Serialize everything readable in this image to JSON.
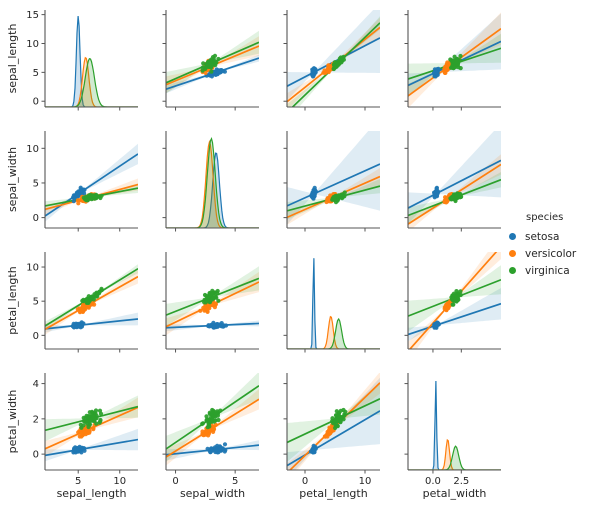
{
  "style": {
    "background": "#ffffff",
    "spine_color": "#555555",
    "text_color": "#262626"
  },
  "legend": {
    "title": "species",
    "items": [
      {
        "label": "setosa",
        "color": "#1f77b4"
      },
      {
        "label": "versicolor",
        "color": "#ff7f0e"
      },
      {
        "label": "virginica",
        "color": "#2ca02c"
      }
    ]
  },
  "chart_data": {
    "type": "scatter",
    "subtype": "pairplot-regression-kde",
    "dataset": "iris",
    "variables": [
      "sepal_length",
      "sepal_width",
      "petal_length",
      "petal_width"
    ],
    "axes": {
      "x": [
        {
          "range": [
            1.0,
            12.2
          ],
          "ticks": [
            {
              "v": 5,
              "label": "5"
            },
            {
              "v": 10,
              "label": "10"
            }
          ]
        },
        {
          "range": [
            -0.8,
            7.0
          ],
          "ticks": [
            {
              "v": 0,
              "label": "0"
            },
            {
              "v": 5,
              "label": "5"
            }
          ]
        },
        {
          "range": [
            -3.0,
            12.5
          ],
          "ticks": [
            {
              "v": 0,
              "label": "0"
            },
            {
              "v": 10,
              "label": "10"
            }
          ]
        },
        {
          "range": [
            -2.2,
            6.0
          ],
          "ticks": [
            {
              "v": 0,
              "label": "0.0"
            },
            {
              "v": 2.5,
              "label": "2.5"
            }
          ]
        }
      ],
      "y": [
        {
          "range": [
            -1.0,
            15.8
          ],
          "ticks": [
            {
              "v": 0,
              "label": "0"
            },
            {
              "v": 5,
              "label": "5"
            },
            {
              "v": 10,
              "label": "10"
            },
            {
              "v": 15,
              "label": "15"
            }
          ]
        },
        {
          "range": [
            -1.5,
            12.5
          ],
          "ticks": [
            {
              "v": 0,
              "label": "0"
            },
            {
              "v": 5,
              "label": "5"
            },
            {
              "v": 10,
              "label": "10"
            }
          ]
        },
        {
          "range": [
            -2.0,
            12.2
          ],
          "ticks": [
            {
              "v": 0,
              "label": "0"
            },
            {
              "v": 5,
              "label": "5"
            },
            {
              "v": 10,
              "label": "10"
            }
          ]
        },
        {
          "range": [
            -0.9,
            4.6
          ],
          "ticks": [
            {
              "v": 0,
              "label": "0"
            },
            {
              "v": 2,
              "label": "2"
            },
            {
              "v": 4,
              "label": "4"
            }
          ]
        }
      ]
    },
    "stats_format": "[mean, std, min, max]",
    "species": [
      {
        "name": "setosa",
        "color": "#1f77b4",
        "stats": {
          "sepal_length": [
            5.01,
            0.35,
            4.3,
            5.8
          ],
          "sepal_width": [
            3.43,
            0.38,
            2.3,
            4.4
          ],
          "petal_length": [
            1.46,
            0.17,
            1.0,
            1.9
          ],
          "petal_width": [
            0.25,
            0.11,
            0.1,
            0.6
          ]
        }
      },
      {
        "name": "versicolor",
        "color": "#ff7f0e",
        "stats": {
          "sepal_length": [
            5.94,
            0.52,
            4.9,
            7.0
          ],
          "sepal_width": [
            2.77,
            0.31,
            2.0,
            3.4
          ],
          "petal_length": [
            4.26,
            0.47,
            3.0,
            5.1
          ],
          "petal_width": [
            1.33,
            0.2,
            1.0,
            1.8
          ]
        }
      },
      {
        "name": "virginica",
        "color": "#2ca02c",
        "stats": {
          "sepal_length": [
            6.59,
            0.64,
            4.9,
            7.9
          ],
          "sepal_width": [
            2.97,
            0.32,
            2.2,
            3.8
          ],
          "petal_length": [
            5.55,
            0.55,
            4.5,
            6.9
          ],
          "petal_width": [
            2.03,
            0.27,
            1.4,
            2.5
          ]
        }
      }
    ],
    "kde_format": "{x: peak position, peak: y-value at peak on row scale, sigma: width}",
    "kde": {
      "sepal_length": {
        "setosa": {
          "x": 5.0,
          "peak": 14.8,
          "sigma": 0.22
        },
        "versicolor": {
          "x": 5.9,
          "peak": 7.6,
          "sigma": 0.38
        },
        "virginica": {
          "x": 6.4,
          "peak": 7.4,
          "sigma": 0.55
        }
      },
      "sepal_width": {
        "setosa": {
          "x": 3.4,
          "peak": 9.4,
          "sigma": 0.28
        },
        "versicolor": {
          "x": 2.85,
          "peak": 10.9,
          "sigma": 0.3
        },
        "virginica": {
          "x": 3.0,
          "peak": 11.4,
          "sigma": 0.33
        }
      },
      "petal_length": {
        "setosa": {
          "x": 1.45,
          "peak": 11.6,
          "sigma": 0.13
        },
        "versicolor": {
          "x": 4.3,
          "peak": 2.8,
          "sigma": 0.4
        },
        "virginica": {
          "x": 5.6,
          "peak": 2.4,
          "sigma": 0.5
        }
      },
      "petal_width": {
        "setosa": {
          "x": 0.25,
          "peak": 4.2,
          "sigma": 0.07
        },
        "versicolor": {
          "x": 1.3,
          "peak": 0.85,
          "sigma": 0.16
        },
        "virginica": {
          "x": 2.0,
          "peak": 0.45,
          "sigma": 0.27
        }
      }
    },
    "regression_format": "[slope, intercept] for y|x",
    "regressions": {
      "sepal_length|sepal_width": {
        "setosa": [
          0.69,
          2.64
        ],
        "versicolor": [
          0.86,
          3.54
        ],
        "virginica": [
          0.9,
          3.91
        ]
      },
      "sepal_length|petal_length": {
        "setosa": [
          0.54,
          4.22
        ],
        "versicolor": [
          0.83,
          2.41
        ],
        "virginica": [
          1.0,
          1.07
        ]
      },
      "sepal_length|petal_width": {
        "setosa": [
          0.93,
          4.78
        ],
        "versicolor": [
          1.42,
          4.05
        ],
        "virginica": [
          0.65,
          5.27
        ]
      },
      "sepal_width|sepal_length": {
        "setosa": [
          0.8,
          -0.57
        ],
        "versicolor": [
          0.32,
          0.87
        ],
        "virginica": [
          0.23,
          1.45
        ]
      },
      "sepal_width|petal_length": {
        "setosa": [
          0.39,
          2.86
        ],
        "versicolor": [
          0.38,
          1.17
        ],
        "virginica": [
          0.23,
          1.67
        ]
      },
      "sepal_width|petal_width": {
        "setosa": [
          0.84,
          3.22
        ],
        "versicolor": [
          1.05,
          1.37
        ],
        "virginica": [
          0.63,
          1.69
        ]
      },
      "petal_length|sepal_length": {
        "setosa": [
          0.13,
          0.81
        ],
        "versicolor": [
          0.69,
          0.18
        ],
        "virginica": [
          0.75,
          0.61
        ]
      },
      "petal_length|sepal_width": {
        "setosa": [
          0.08,
          1.18
        ],
        "versicolor": [
          0.84,
          1.93
        ],
        "virginica": [
          0.69,
          3.51
        ]
      },
      "petal_length|petal_width": {
        "setosa": [
          0.55,
          1.33
        ],
        "versicolor": [
          1.87,
          1.78
        ],
        "virginica": [
          0.65,
          4.24
        ]
      },
      "petal_width|sepal_length": {
        "setosa": [
          0.08,
          -0.15
        ],
        "versicolor": [
          0.21,
          0.09
        ],
        "virginica": [
          0.12,
          1.23
        ]
      },
      "petal_width|sepal_width": {
        "setosa": [
          0.07,
          0.02
        ],
        "versicolor": [
          0.42,
          0.17
        ],
        "virginica": [
          0.46,
          0.66
        ]
      },
      "petal_width|petal_length": {
        "setosa": [
          0.2,
          -0.05
        ],
        "versicolor": [
          0.33,
          -0.08
        ],
        "virginica": [
          0.16,
          1.14
        ]
      }
    }
  }
}
